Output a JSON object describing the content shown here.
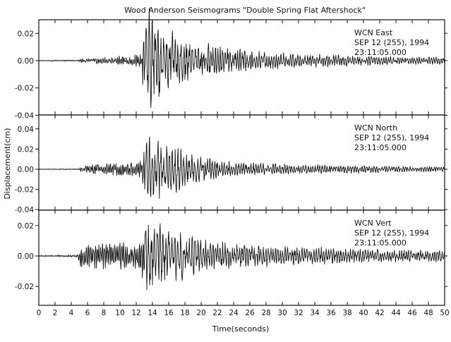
{
  "chart_data": {
    "type": "line",
    "title": "Wood Anderson Seismograms \"Double Spring Flat Aftershock\"",
    "xlabel": "Time(seconds)",
    "ylabel": "Displacement(cm)",
    "xlim": [
      0,
      50
    ],
    "x_ticks": [
      "0",
      "2",
      "4",
      "6",
      "8",
      "10",
      "12",
      "14",
      "16",
      "18",
      "20",
      "22",
      "24",
      "26",
      "28",
      "30",
      "32",
      "34",
      "36",
      "38",
      "40",
      "42",
      "44",
      "46",
      "48",
      "50"
    ],
    "grid": false,
    "panels": [
      {
        "station": "WCN",
        "component": "East",
        "date": "SEP 12 (255), 1994",
        "time": "23:11:05.000",
        "ylim": [
          -0.048,
          0.038
        ],
        "y_ticks": [
          "0.02",
          "0.00",
          "-0.02",
          "-0.04"
        ],
        "y_tick_values": [
          0.02,
          0.0,
          -0.02,
          -0.04
        ],
        "envelope": {
          "t": [
            0,
            4.8,
            5.0,
            9.0,
            11.0,
            12.6,
            13.0,
            13.5,
            14.0,
            15.0,
            16.0,
            17.0,
            18.0,
            20.0,
            22.0,
            24.0,
            26.0,
            30.0,
            34.0,
            40.0,
            45.0,
            50.0
          ],
          "amp": [
            0.0004,
            0.0006,
            0.002,
            0.003,
            0.004,
            0.006,
            0.035,
            0.042,
            0.04,
            0.03,
            0.024,
            0.02,
            0.017,
            0.014,
            0.012,
            0.01,
            0.008,
            0.006,
            0.005,
            0.004,
            0.003,
            0.003
          ]
        }
      },
      {
        "station": "WCN",
        "component": "North",
        "date": "SEP 12 (255), 1994",
        "time": "23:11:05.000",
        "ylim": [
          -0.042,
          0.05
        ],
        "y_ticks": [
          "0.04",
          "0.02",
          "0.00",
          "-0.02",
          "-0.04"
        ],
        "y_tick_values": [
          0.04,
          0.02,
          0.0,
          -0.02,
          -0.04
        ],
        "envelope": {
          "t": [
            0,
            5.0,
            5.2,
            9.0,
            11.0,
            12.6,
            13.0,
            13.5,
            14.0,
            15.0,
            16.0,
            17.0,
            18.0,
            20.0,
            22.0,
            24.0,
            26.0,
            30.0,
            34.0,
            40.0,
            45.0,
            50.0
          ],
          "amp": [
            0.0004,
            0.0006,
            0.005,
            0.006,
            0.007,
            0.009,
            0.03,
            0.04,
            0.038,
            0.032,
            0.026,
            0.024,
            0.018,
            0.013,
            0.01,
            0.008,
            0.007,
            0.006,
            0.005,
            0.004,
            0.003,
            0.003
          ]
        }
      },
      {
        "station": "WCN",
        "component": "Vert",
        "date": "SEP 12 (255), 1994",
        "time": "23:11:05.000",
        "ylim": [
          -0.03,
          0.028
        ],
        "y_ticks": [
          "0.02",
          "0.00",
          "-0.02"
        ],
        "y_tick_values": [
          0.02,
          0.0,
          -0.02
        ],
        "envelope": {
          "t": [
            0,
            4.8,
            5.2,
            9.0,
            11.0,
            12.6,
            13.0,
            13.5,
            14.0,
            15.0,
            16.0,
            17.0,
            18.0,
            20.0,
            22.0,
            24.0,
            26.0,
            30.0,
            34.0,
            40.0,
            45.0,
            50.0
          ],
          "amp": [
            0.0005,
            0.0008,
            0.01,
            0.009,
            0.009,
            0.01,
            0.024,
            0.028,
            0.026,
            0.022,
            0.02,
            0.018,
            0.016,
            0.012,
            0.01,
            0.009,
            0.008,
            0.007,
            0.006,
            0.005,
            0.004,
            0.004
          ]
        }
      }
    ]
  }
}
